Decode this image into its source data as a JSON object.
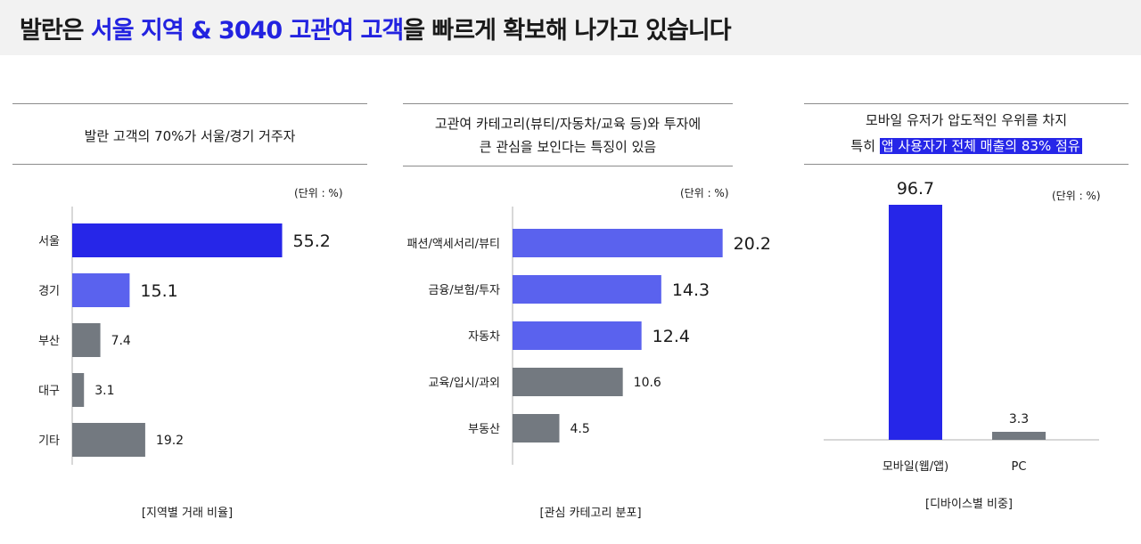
{
  "header": {
    "title_pre": "발란은 ",
    "title_highlight": "서울 지역 & 3040 고관여 고객",
    "title_post": "을 빠르게 확보해 나가고 있습니다"
  },
  "colors": {
    "highlight_blue": "#2222e0",
    "bar_dark_blue": "#2626e8",
    "bar_light_blue": "#5a62ee",
    "bar_gray": "#737980"
  },
  "panels": {
    "region": {
      "title": "발란 고객의 70%가 서울/경기 거주자",
      "unit": "(단위 : %)",
      "caption": "[지역별 거래 비율]"
    },
    "category": {
      "title_line1": "고관여 카테고리(뷰티/자동차/교육 등)와 투자에",
      "title_line2": "큰 관심을 보인다는 특징이 있음",
      "unit": "(단위 : %)",
      "caption": "[관심 카테고리 분포]"
    },
    "device": {
      "title_line1": "모바일 유저가 압도적인 우위를 차지",
      "title_line2_pre": "특히 ",
      "title_line2_mark": "앱 사용자가 전체 매출의 83% 점유",
      "unit": "(단위 : %)",
      "caption": "[디바이스별 비중]"
    }
  },
  "chart_data": [
    {
      "type": "bar",
      "orientation": "horizontal",
      "categories": [
        "서울",
        "경기",
        "부산",
        "대구",
        "기타"
      ],
      "values": [
        55.2,
        15.1,
        7.4,
        3.1,
        19.2
      ],
      "labels": [
        "55.2",
        "15.1",
        "7.4",
        "3.1",
        "19.2"
      ],
      "bar_colors": [
        "#2626e8",
        "#5a62ee",
        "#737980",
        "#737980",
        "#737980"
      ],
      "highlight": [
        true,
        true,
        false,
        false,
        false
      ],
      "xlim": [
        0,
        60
      ],
      "grid": false
    },
    {
      "type": "bar",
      "orientation": "horizontal",
      "categories": [
        "패션/액세서리/뷰티",
        "금융/보험/투자",
        "자동차",
        "교육/입시/과외",
        "부동산"
      ],
      "values": [
        20.2,
        14.3,
        12.4,
        10.6,
        4.5
      ],
      "labels": [
        "20.2",
        "14.3",
        "12.4",
        "10.6",
        "4.5"
      ],
      "bar_colors": [
        "#5a62ee",
        "#5a62ee",
        "#5a62ee",
        "#737980",
        "#737980"
      ],
      "highlight": [
        true,
        true,
        true,
        false,
        false
      ],
      "xlim": [
        0,
        21
      ],
      "grid": false
    },
    {
      "type": "bar",
      "orientation": "vertical",
      "categories": [
        "모바일(웹/앱)",
        "PC"
      ],
      "values": [
        96.7,
        3.3
      ],
      "labels": [
        "96.7",
        "3.3"
      ],
      "bar_colors": [
        "#2626e8",
        "#737980"
      ],
      "highlight": [
        true,
        false
      ],
      "ylim": [
        0,
        100
      ],
      "grid": false
    }
  ]
}
